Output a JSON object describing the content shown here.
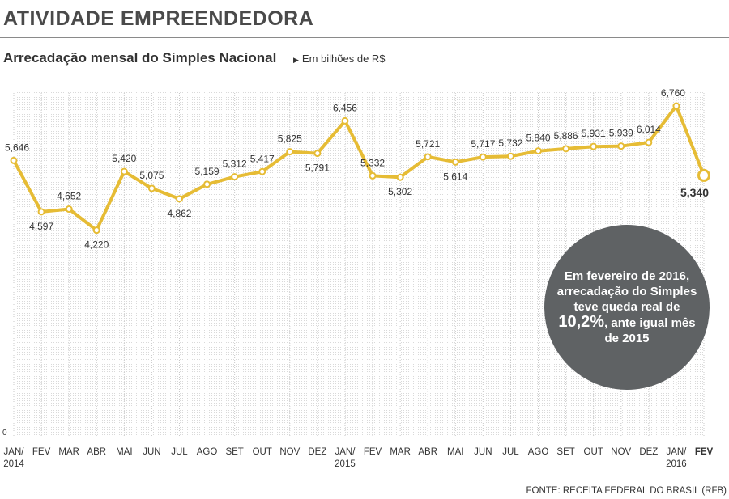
{
  "header": {
    "section_title": "ATIVIDADE EMPREENDEDORA",
    "chart_title": "Arrecadação mensal do Simples Nacional",
    "unit_label": "Em bilhões de R$"
  },
  "callout": {
    "text_before": "Em fevereiro de 2016, arrecadação do Simples teve queda real de ",
    "highlight": "10,2%",
    "text_after": ", ante igual mês de 2015"
  },
  "footer": {
    "source": "FONTE: RECEITA FEDERAL DO BRASIL (RFB)"
  },
  "chart_data": {
    "type": "line",
    "title": "Arrecadação mensal do Simples Nacional",
    "ylabel": "Em bilhões de R$",
    "y_zero_label": "0",
    "categories": [
      "JAN/2014",
      "FEV",
      "MAR",
      "ABR",
      "MAI",
      "JUN",
      "JUL",
      "AGO",
      "SET",
      "OUT",
      "NOV",
      "DEZ",
      "JAN/2015",
      "FEV",
      "MAR",
      "ABR",
      "MAI",
      "JUN",
      "JUL",
      "AGO",
      "SET",
      "OUT",
      "NOV",
      "DEZ",
      "JAN/2016",
      "FEV"
    ],
    "tick_labels": [
      [
        "JAN/",
        "2014"
      ],
      [
        "FEV"
      ],
      [
        "MAR"
      ],
      [
        "ABR"
      ],
      [
        "MAI"
      ],
      [
        "JUN"
      ],
      [
        "JUL"
      ],
      [
        "AGO"
      ],
      [
        "SET"
      ],
      [
        "OUT"
      ],
      [
        "NOV"
      ],
      [
        "DEZ"
      ],
      [
        "JAN/",
        "2015"
      ],
      [
        "FEV"
      ],
      [
        "MAR"
      ],
      [
        "ABR"
      ],
      [
        "MAI"
      ],
      [
        "JUN"
      ],
      [
        "JUL"
      ],
      [
        "AGO"
      ],
      [
        "SET"
      ],
      [
        "OUT"
      ],
      [
        "NOV"
      ],
      [
        "DEZ"
      ],
      [
        "JAN/",
        "2016"
      ],
      [
        "FEV"
      ]
    ],
    "values": [
      5.646,
      4.597,
      4.652,
      4.22,
      5.42,
      5.075,
      4.862,
      5.159,
      5.312,
      5.417,
      5.825,
      5.791,
      6.456,
      5.332,
      5.302,
      5.721,
      5.614,
      5.717,
      5.732,
      5.84,
      5.886,
      5.931,
      5.939,
      6.014,
      6.76,
      5.34
    ],
    "value_labels": [
      "5,646",
      "4,597",
      "4,652",
      "4,220",
      "5,420",
      "5,075",
      "4,862",
      "5,159",
      "5,312",
      "5,417",
      "5,825",
      "5,791",
      "6,456",
      "5,332",
      "5,302",
      "5,721",
      "5,614",
      "5,717",
      "5,732",
      "5,840",
      "5,886",
      "5,931",
      "5,939",
      "6,014",
      "6,760",
      "5,340"
    ],
    "ylim": [
      0,
      7
    ],
    "grid": true,
    "line_color": "#e6bc35",
    "grid_color": "#c8c8c8",
    "label_color": "#333333"
  }
}
